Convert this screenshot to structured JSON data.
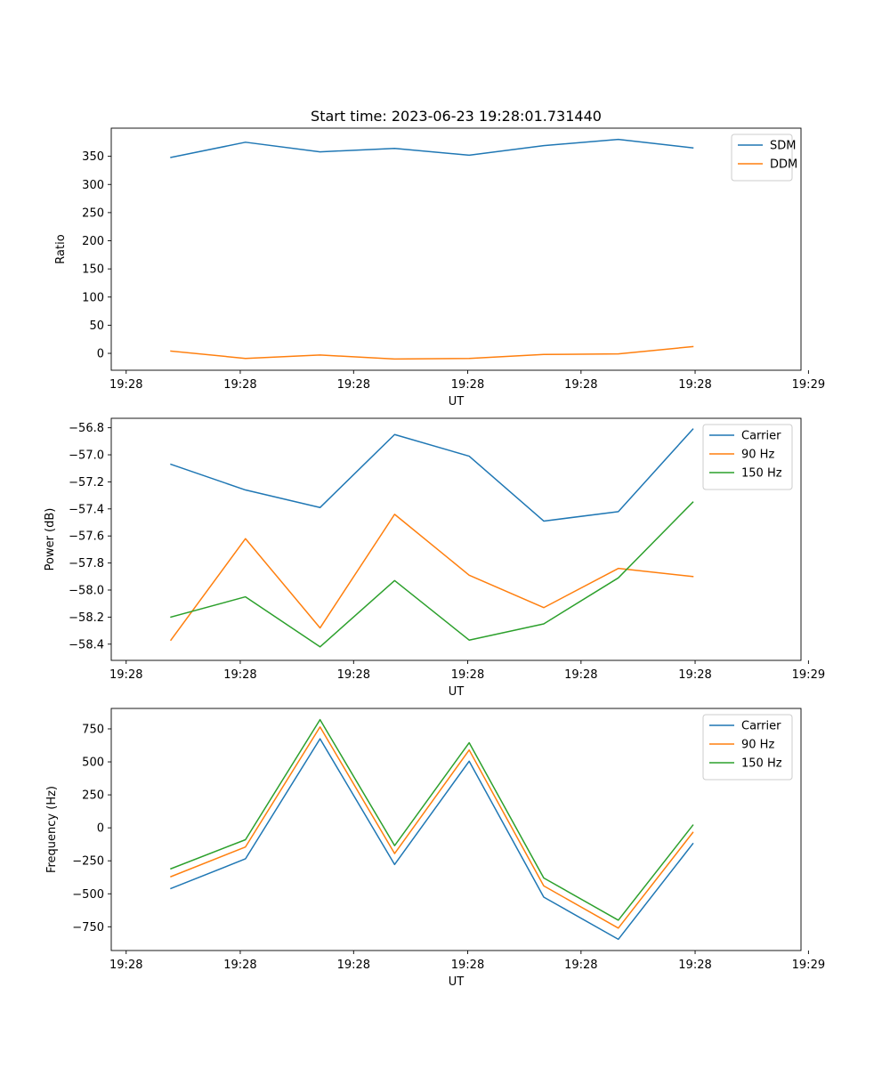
{
  "chart_data": [
    {
      "type": "line",
      "title": "Start time: 2023-06-23 19:28:01.731440",
      "xlabel": "UT",
      "ylabel": "Ratio",
      "x": [
        1,
        2,
        3,
        4,
        5,
        6,
        7,
        8
      ],
      "xlim": [
        0.2,
        9.45
      ],
      "x_ticks": [
        0.4,
        1.93,
        3.45,
        4.98,
        6.5,
        8.03,
        9.55
      ],
      "x_tick_labels": [
        "19:28",
        "19:28",
        "19:28",
        "19:28",
        "19:28",
        "19:28",
        "19:29"
      ],
      "ylim": [
        -30,
        400
      ],
      "y_ticks": [
        0,
        50,
        100,
        150,
        200,
        250,
        300,
        350
      ],
      "y_tick_labels": [
        "0",
        "50",
        "100",
        "150",
        "200",
        "250",
        "300",
        "350"
      ],
      "legend_position": "top-right",
      "series": [
        {
          "name": "SDM",
          "color": "#1f77b4",
          "values": [
            348,
            375,
            358,
            364,
            352,
            369,
            380,
            365
          ]
        },
        {
          "name": "DDM",
          "color": "#ff7f0e",
          "values": [
            4,
            -9,
            -3,
            -10,
            -9,
            -2,
            -1,
            12
          ]
        }
      ]
    },
    {
      "type": "line",
      "title": "",
      "xlabel": "UT",
      "ylabel": "Power (dB)",
      "x": [
        1,
        2,
        3,
        4,
        5,
        6,
        7,
        8
      ],
      "xlim": [
        0.2,
        9.45
      ],
      "x_ticks": [
        0.4,
        1.93,
        3.45,
        4.98,
        6.5,
        8.03,
        9.55
      ],
      "x_tick_labels": [
        "19:28",
        "19:28",
        "19:28",
        "19:28",
        "19:28",
        "19:28",
        "19:29"
      ],
      "ylim": [
        -58.52,
        -56.73
      ],
      "y_ticks": [
        -58.4,
        -58.2,
        -58.0,
        -57.8,
        -57.6,
        -57.4,
        -57.2,
        -57.0,
        -56.8
      ],
      "y_tick_labels": [
        "−58.4",
        "−58.2",
        "−58.0",
        "−57.8",
        "−57.6",
        "−57.4",
        "−57.2",
        "−57.0",
        "−56.8"
      ],
      "legend_position": "top-right",
      "series": [
        {
          "name": "Carrier",
          "color": "#1f77b4",
          "values": [
            -57.07,
            -57.26,
            -57.39,
            -56.85,
            -57.01,
            -57.49,
            -57.42,
            -56.81
          ]
        },
        {
          "name": "90 Hz",
          "color": "#ff7f0e",
          "values": [
            -58.37,
            -57.62,
            -58.28,
            -57.44,
            -57.89,
            -58.13,
            -57.84,
            -57.9
          ]
        },
        {
          "name": "150 Hz",
          "color": "#2ca02c",
          "values": [
            -58.2,
            -58.05,
            -58.42,
            -57.93,
            -58.37,
            -58.25,
            -57.91,
            -57.35
          ]
        }
      ]
    },
    {
      "type": "line",
      "title": "",
      "xlabel": "UT",
      "ylabel": "Frequency (Hz)",
      "x": [
        1,
        2,
        3,
        4,
        5,
        6,
        7,
        8
      ],
      "xlim": [
        0.2,
        9.45
      ],
      "x_ticks": [
        0.4,
        1.93,
        3.45,
        4.98,
        6.5,
        8.03,
        9.55
      ],
      "x_tick_labels": [
        "19:28",
        "19:28",
        "19:28",
        "19:28",
        "19:28",
        "19:28",
        "19:29"
      ],
      "ylim": [
        -930,
        905
      ],
      "y_ticks": [
        -750,
        -500,
        -250,
        0,
        250,
        500,
        750
      ],
      "y_tick_labels": [
        "−750",
        "−500",
        "−250",
        "0",
        "250",
        "500",
        "750"
      ],
      "legend_position": "top-right",
      "series": [
        {
          "name": "Carrier",
          "color": "#1f77b4",
          "values": [
            -460,
            -235,
            675,
            -278,
            505,
            -525,
            -845,
            -120
          ]
        },
        {
          "name": "90 Hz",
          "color": "#ff7f0e",
          "values": [
            -370,
            -145,
            765,
            -195,
            590,
            -440,
            -760,
            -35
          ]
        },
        {
          "name": "150 Hz",
          "color": "#2ca02c",
          "values": [
            -310,
            -90,
            820,
            -135,
            645,
            -380,
            -700,
            20
          ]
        }
      ]
    }
  ]
}
